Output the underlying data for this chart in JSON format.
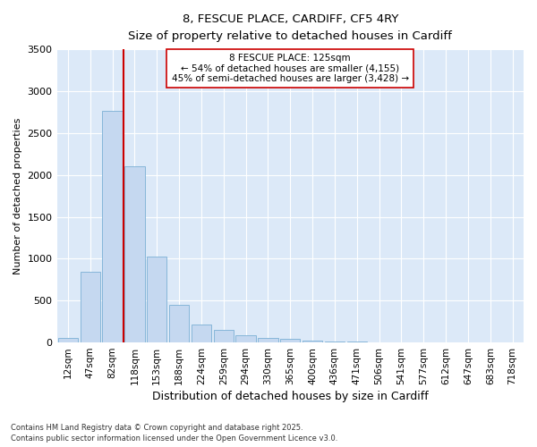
{
  "title_line1": "8, FESCUE PLACE, CARDIFF, CF5 4RY",
  "title_line2": "Size of property relative to detached houses in Cardiff",
  "xlabel": "Distribution of detached houses by size in Cardiff",
  "ylabel": "Number of detached properties",
  "categories": [
    "12sqm",
    "47sqm",
    "82sqm",
    "118sqm",
    "153sqm",
    "188sqm",
    "224sqm",
    "259sqm",
    "294sqm",
    "330sqm",
    "365sqm",
    "400sqm",
    "436sqm",
    "471sqm",
    "506sqm",
    "541sqm",
    "577sqm",
    "612sqm",
    "647sqm",
    "683sqm",
    "718sqm"
  ],
  "values": [
    55,
    840,
    2760,
    2100,
    1030,
    450,
    210,
    150,
    85,
    55,
    40,
    25,
    15,
    8,
    3,
    2,
    2,
    1,
    1,
    1,
    1
  ],
  "bar_color": "#c5d8f0",
  "bar_edge_color": "#7bafd4",
  "vline_index": 3,
  "vline_color": "#cc0000",
  "ylim": [
    0,
    3500
  ],
  "yticks": [
    0,
    500,
    1000,
    1500,
    2000,
    2500,
    3000,
    3500
  ],
  "annotation_line1": "8 FESCUE PLACE: 125sqm",
  "annotation_line2": "← 54% of detached houses are smaller (4,155)",
  "annotation_line3": "45% of semi-detached houses are larger (3,428) →",
  "annotation_box_facecolor": "#ffffff",
  "annotation_box_edgecolor": "#cc0000",
  "footer_text": "Contains HM Land Registry data © Crown copyright and database right 2025.\nContains public sector information licensed under the Open Government Licence v3.0.",
  "background_color": "#ffffff",
  "plot_bg_color": "#dce9f8",
  "grid_color": "#ffffff",
  "title1_fontsize": 10,
  "title2_fontsize": 9
}
